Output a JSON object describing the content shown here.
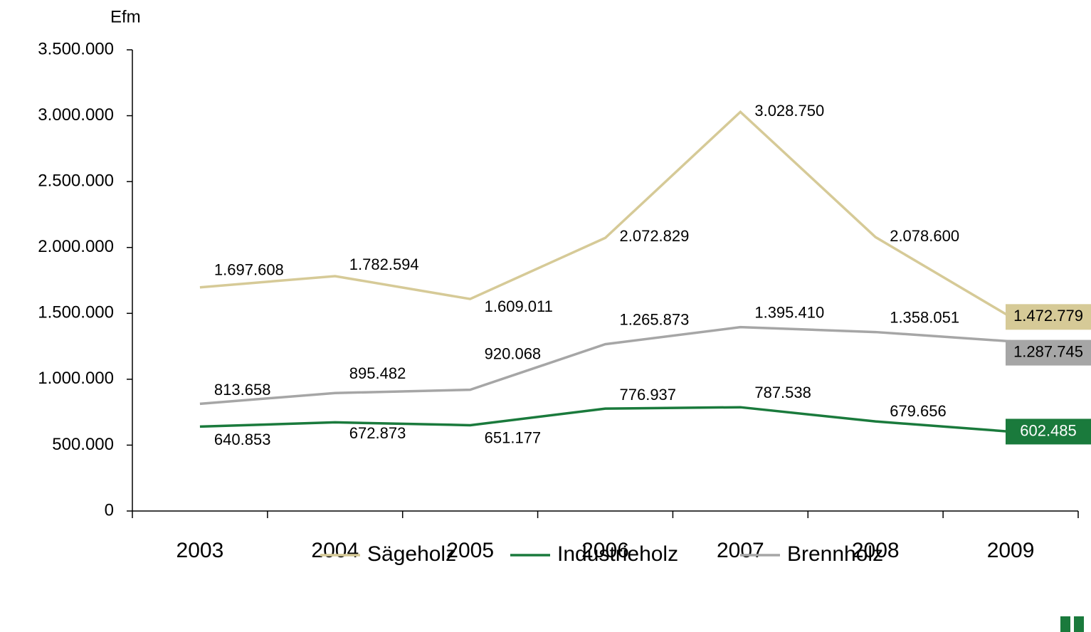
{
  "chart_data": {
    "type": "line",
    "y_axis_label": "Efm",
    "categories": [
      "2003",
      "2004",
      "2005",
      "2006",
      "2007",
      "2008",
      "2009"
    ],
    "series": [
      {
        "name": "Sägeholz",
        "color": "#d6ca97",
        "values": [
          1697608,
          1782594,
          1609011,
          2072829,
          3028750,
          2078600,
          1472779
        ],
        "value_labels": [
          "1.697.608",
          "1.782.594",
          "1.609.011",
          "2.072.829",
          "3.028.750",
          "2.078.600",
          "1.472.779"
        ]
      },
      {
        "name": "Industrieholz",
        "color": "#1a7a3c",
        "values": [
          640853,
          672873,
          651177,
          776937,
          787538,
          679656,
          602485
        ],
        "value_labels": [
          "640.853",
          "672.873",
          "651.177",
          "776.937",
          "787.538",
          "679.656",
          "602.485"
        ]
      },
      {
        "name": "Brennholz",
        "color": "#a6a6a6",
        "values": [
          813658,
          895482,
          920068,
          1265873,
          1395410,
          1358051,
          1287745
        ],
        "value_labels": [
          "813.658",
          "895.482",
          "920.068",
          "1.265.873",
          "1.395.410",
          "1.358.051",
          "1.287.745"
        ]
      }
    ],
    "ylim": [
      0,
      3500000
    ],
    "yticks": [
      0,
      {
        "value": 500000,
        "label": "500.000"
      },
      {
        "value": 1000000,
        "label": "1.000.000"
      },
      {
        "value": 1500000,
        "label": "1.500.000"
      },
      {
        "value": 2000000,
        "label": "2.000.000"
      },
      {
        "value": 2500000,
        "label": "2.500.000"
      },
      {
        "value": 3000000,
        "label": "3.000.000"
      },
      {
        "value": 3500000,
        "label": "3.500.000"
      }
    ],
    "legend": "bottom"
  }
}
